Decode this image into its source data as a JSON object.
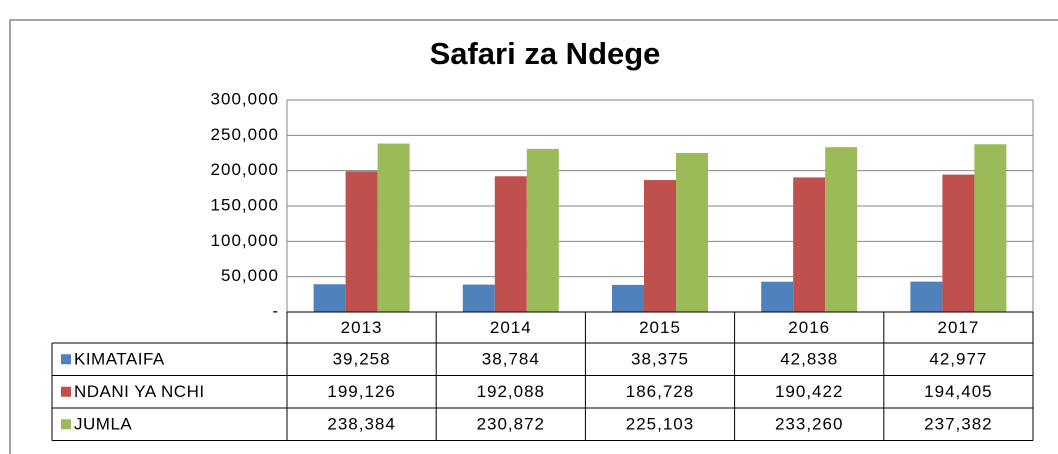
{
  "chart_data": {
    "type": "bar",
    "title": "Safari za Ndege",
    "categories": [
      "2013",
      "2014",
      "2015",
      "2016",
      "2017"
    ],
    "series": [
      {
        "name": "KIMATAIFA",
        "color": "#4f81bd",
        "values": [
          39258,
          38784,
          38375,
          42838,
          42977
        ],
        "value_labels": [
          "39,258",
          "38,784",
          "38,375",
          "42,838",
          "42,977"
        ]
      },
      {
        "name": "NDANI YA NCHI",
        "color": "#c0504d",
        "values": [
          199126,
          192088,
          186728,
          190422,
          194405
        ],
        "value_labels": [
          "199,126",
          "192,088",
          "186,728",
          "190,422",
          "194,405"
        ]
      },
      {
        "name": "JUMLA",
        "color": "#9bbb59",
        "values": [
          238384,
          230872,
          225103,
          233260,
          237382
        ],
        "value_labels": [
          "238,384",
          "230,872",
          "225,103",
          "233,260",
          "237,382"
        ]
      }
    ],
    "ylim": [
      0,
      300000
    ],
    "yticks": [
      {
        "value": 0,
        "label": "-"
      },
      {
        "value": 50000,
        "label": "50,000"
      },
      {
        "value": 100000,
        "label": "100,000"
      },
      {
        "value": 150000,
        "label": "150,000"
      },
      {
        "value": 200000,
        "label": "200,000"
      },
      {
        "value": 250000,
        "label": "250,000"
      },
      {
        "value": 300000,
        "label": "300,000"
      }
    ],
    "grid": true
  }
}
